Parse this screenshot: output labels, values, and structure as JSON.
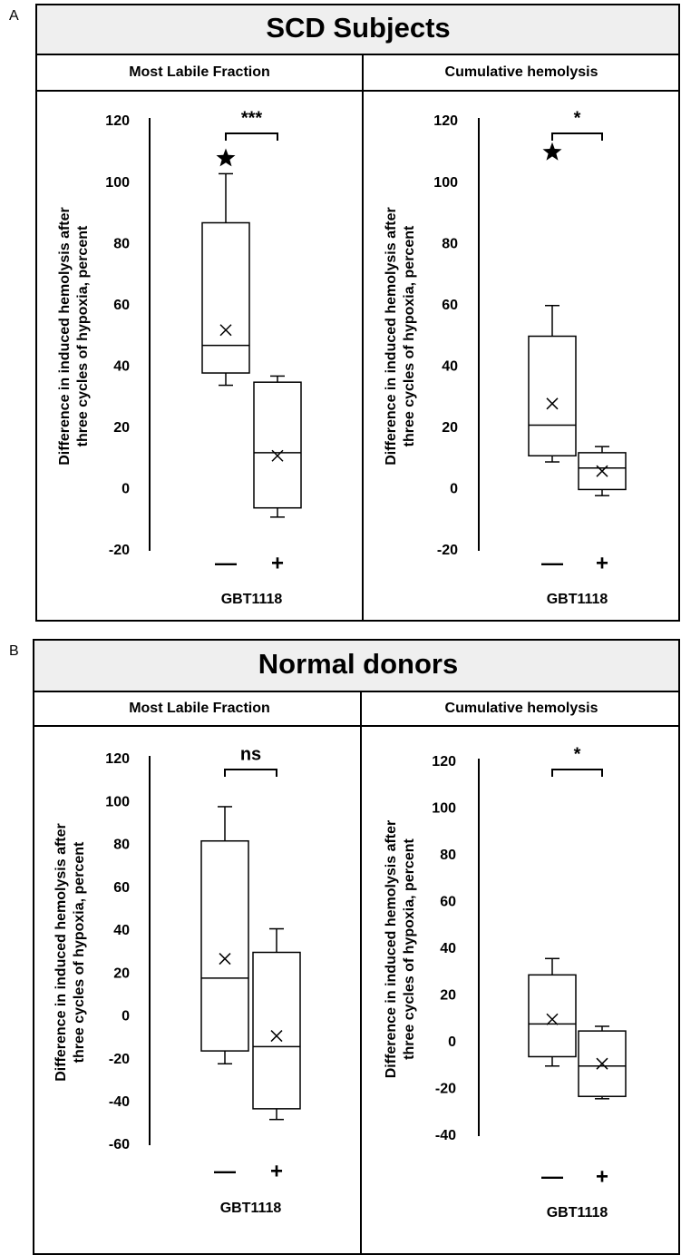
{
  "panels": [
    {
      "label": "A",
      "title": "SCD Subjects"
    },
    {
      "label": "B",
      "title": "Normal donors"
    }
  ],
  "chart_data": [
    {
      "type": "box",
      "title": "Most Labile Fraction",
      "ylabel": [
        "Difference in induced hemolysis after",
        "three cycles of hypoxia, percent"
      ],
      "xlabel": "GBT1118",
      "categories": [
        "—",
        "+"
      ],
      "annotation": "***",
      "boxes": [
        {
          "min": 34,
          "q1": 38,
          "median": 47,
          "q3": 87,
          "max": 103,
          "mean": 52,
          "outliers": [
            108
          ]
        },
        {
          "min": -9,
          "q1": -6,
          "median": 12,
          "q3": 35,
          "max": 37,
          "mean": 11,
          "outliers": []
        }
      ],
      "ylim": [
        -20,
        120
      ],
      "yticks": [
        -20,
        0,
        20,
        40,
        60,
        80,
        100,
        120
      ]
    },
    {
      "type": "box",
      "title": "Cumulative hemolysis",
      "ylabel": [
        "Difference in induced hemolysis after",
        "three cycles of hypoxia, percent"
      ],
      "xlabel": "GBT1118",
      "categories": [
        "—",
        "+"
      ],
      "annotation": "*",
      "boxes": [
        {
          "min": 9,
          "q1": 11,
          "median": 21,
          "q3": 50,
          "max": 60,
          "mean": 28,
          "outliers": [
            110
          ]
        },
        {
          "min": -2,
          "q1": 0,
          "median": 7,
          "q3": 12,
          "max": 14,
          "mean": 6,
          "outliers": []
        }
      ],
      "ylim": [
        -20,
        120
      ],
      "yticks": [
        -20,
        0,
        20,
        40,
        60,
        80,
        100,
        120
      ]
    },
    {
      "type": "box",
      "title": "Most Labile Fraction",
      "ylabel": [
        "Difference in induced hemolysis after",
        "three cycles of hypoxia, percent"
      ],
      "xlabel": "GBT1118",
      "categories": [
        "—",
        "+"
      ],
      "annotation": "ns",
      "boxes": [
        {
          "min": -22,
          "q1": -16,
          "median": 18,
          "q3": 82,
          "max": 98,
          "mean": 27,
          "outliers": []
        },
        {
          "min": -48,
          "q1": -43,
          "median": -14,
          "q3": 30,
          "max": 41,
          "mean": -9,
          "outliers": []
        }
      ],
      "ylim": [
        -60,
        120
      ],
      "yticks": [
        -60,
        -40,
        -20,
        0,
        20,
        40,
        60,
        80,
        100,
        120
      ]
    },
    {
      "type": "box",
      "title": "Cumulative hemolysis",
      "ylabel": [
        "Difference in induced hemolysis after",
        "three cycles of hypoxia, percent"
      ],
      "xlabel": "GBT1118",
      "categories": [
        "—",
        "+"
      ],
      "annotation": "*",
      "boxes": [
        {
          "min": -10,
          "q1": -6,
          "median": 8,
          "q3": 29,
          "max": 36,
          "mean": 10,
          "outliers": []
        },
        {
          "min": -24,
          "q1": -23,
          "median": -10,
          "q3": 5,
          "max": 7,
          "mean": -9,
          "outliers": []
        }
      ],
      "ylim": [
        -40,
        120
      ],
      "yticks": [
        -40,
        -20,
        0,
        20,
        40,
        60,
        80,
        100,
        120
      ]
    }
  ]
}
